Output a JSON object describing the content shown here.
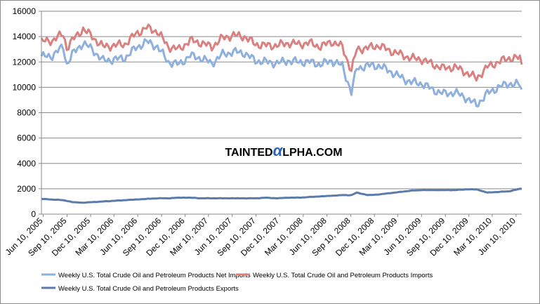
{
  "watermark": "TAINTEDALPHA.COM",
  "watermark_parts": {
    "pre": "TAINTED",
    "alpha": "α",
    "post": "LPHA.COM"
  },
  "chart_data": {
    "type": "line",
    "title": "",
    "xlabel": "",
    "ylabel": "",
    "ylim": [
      0,
      16000
    ],
    "yticks": [
      0,
      2000,
      4000,
      6000,
      8000,
      10000,
      12000,
      14000,
      16000
    ],
    "ytick_labels": [
      "0",
      "2000",
      "4000",
      "6000",
      "8000",
      "10000",
      "12000",
      "14000",
      "16000"
    ],
    "grid": "horizontal",
    "legend_position": "bottom",
    "x_tick_labels": [
      "Jun 10, 2005",
      "Sep 10, 2005",
      "Dec 10, 2005",
      "Mar 10, 2006",
      "Jun 10, 2006",
      "Sep 10, 2006",
      "Dec 10, 2006",
      "Mar 10, 2007",
      "Jun 10, 2007",
      "Sep 10, 2007",
      "Dec 10, 2007",
      "Mar 10, 2008",
      "Jun 10, 2008",
      "Sep 10, 2008",
      "Dec 10, 2008",
      "Mar 10, 2009",
      "Jun 10, 2009",
      "Sep 10, 2009",
      "Dec 10, 2009",
      "Mar 10, 2010",
      "Jun 10, 2010"
    ],
    "x_tick_dates": [
      "2005-06-10",
      "2005-09-10",
      "2005-12-10",
      "2006-03-10",
      "2006-06-10",
      "2006-09-10",
      "2006-12-10",
      "2007-03-10",
      "2007-06-10",
      "2007-09-10",
      "2007-12-10",
      "2008-03-10",
      "2008-06-10",
      "2008-09-10",
      "2008-12-10",
      "2009-03-10",
      "2009-06-10",
      "2009-09-10",
      "2009-12-10",
      "2010-03-10",
      "2010-06-10"
    ],
    "x_range": [
      "2005-06-03",
      "2010-07-02"
    ],
    "frequency": "weekly",
    "series": [
      {
        "name": "Weekly U.S. Total Crude Oil and Petroleum Products Net Imports",
        "color": "#8fb0dc",
        "x_dates": [
          "2005-06-03",
          "2005-07-15",
          "2005-08-26",
          "2005-09-09",
          "2005-09-30",
          "2005-11-11",
          "2005-12-16",
          "2006-01-27",
          "2006-03-10",
          "2006-04-21",
          "2006-06-02",
          "2006-07-14",
          "2006-08-25",
          "2006-10-06",
          "2006-11-17",
          "2006-12-29",
          "2007-02-09",
          "2007-03-23",
          "2007-05-04",
          "2007-06-15",
          "2007-07-27",
          "2007-09-07",
          "2007-10-19",
          "2007-11-30",
          "2008-01-11",
          "2008-02-22",
          "2008-04-04",
          "2008-05-16",
          "2008-06-27",
          "2008-08-08",
          "2008-09-12",
          "2008-10-03",
          "2008-11-14",
          "2008-12-26",
          "2009-02-06",
          "2009-03-20",
          "2009-05-01",
          "2009-06-12",
          "2009-07-24",
          "2009-09-04",
          "2009-10-16",
          "2009-11-27",
          "2010-01-08",
          "2010-02-19",
          "2010-04-02",
          "2010-05-14",
          "2010-06-25",
          "2010-07-02"
        ],
        "values": [
          12400,
          12500,
          13200,
          11800,
          12600,
          13500,
          13000,
          12100,
          12200,
          12300,
          13100,
          13600,
          13200,
          12000,
          11800,
          12500,
          12300,
          11900,
          12600,
          12800,
          12700,
          12100,
          12000,
          11900,
          12100,
          12000,
          12000,
          11800,
          12100,
          11700,
          9600,
          11500,
          11700,
          11700,
          11300,
          10800,
          10400,
          10300,
          9800,
          9500,
          9600,
          9200,
          8600,
          9500,
          10000,
          10300,
          10200,
          9700
        ]
      },
      {
        "name": "Weekly U.S. Total Crude Oil and Petroleum Products Imports",
        "color": "#d98080",
        "x_dates": [
          "2005-06-03",
          "2005-07-15",
          "2005-08-26",
          "2005-09-09",
          "2005-09-30",
          "2005-11-11",
          "2005-12-16",
          "2006-01-27",
          "2006-03-10",
          "2006-04-21",
          "2006-06-02",
          "2006-07-14",
          "2006-08-25",
          "2006-10-06",
          "2006-11-17",
          "2006-12-29",
          "2007-02-09",
          "2007-03-23",
          "2007-05-04",
          "2007-06-15",
          "2007-07-27",
          "2007-09-07",
          "2007-10-19",
          "2007-11-30",
          "2008-01-11",
          "2008-02-22",
          "2008-04-04",
          "2008-05-16",
          "2008-06-27",
          "2008-08-08",
          "2008-09-12",
          "2008-10-03",
          "2008-11-14",
          "2008-12-26",
          "2009-02-06",
          "2009-03-20",
          "2009-05-01",
          "2009-06-12",
          "2009-07-24",
          "2009-09-04",
          "2009-10-16",
          "2009-11-27",
          "2010-01-08",
          "2010-02-19",
          "2010-04-02",
          "2010-05-14",
          "2010-06-25",
          "2010-07-02"
        ],
        "values": [
          13600,
          13700,
          14200,
          13100,
          13700,
          14600,
          14000,
          13200,
          13300,
          13400,
          14200,
          14700,
          14400,
          13200,
          13000,
          13700,
          13500,
          13200,
          13900,
          14100,
          14000,
          13400,
          13300,
          13300,
          13500,
          13400,
          13500,
          13200,
          13600,
          13200,
          11300,
          13000,
          13100,
          13300,
          12900,
          12600,
          12300,
          12200,
          11800,
          11500,
          11600,
          11200,
          10700,
          11600,
          12000,
          12300,
          12300,
          11700
        ]
      },
      {
        "name": "Weekly U.S. Total Crude Oil and Petroleum Products Exports",
        "color": "#5b7bab",
        "x_dates": [
          "2005-06-03",
          "2005-07-15",
          "2005-08-26",
          "2005-09-09",
          "2005-09-30",
          "2005-11-11",
          "2005-12-16",
          "2006-01-27",
          "2006-03-10",
          "2006-04-21",
          "2006-06-02",
          "2006-07-14",
          "2006-08-25",
          "2006-10-06",
          "2006-11-17",
          "2006-12-29",
          "2007-02-09",
          "2007-03-23",
          "2007-05-04",
          "2007-06-15",
          "2007-07-27",
          "2007-09-07",
          "2007-10-19",
          "2007-11-30",
          "2008-01-11",
          "2008-02-22",
          "2008-04-04",
          "2008-05-16",
          "2008-06-27",
          "2008-08-08",
          "2008-09-12",
          "2008-10-03",
          "2008-11-14",
          "2008-12-26",
          "2009-02-06",
          "2009-03-20",
          "2009-05-01",
          "2009-06-12",
          "2009-07-24",
          "2009-09-04",
          "2009-10-16",
          "2009-11-27",
          "2010-01-08",
          "2010-02-19",
          "2010-04-02",
          "2010-05-14",
          "2010-06-25",
          "2010-07-02"
        ],
        "values": [
          1200,
          1150,
          1100,
          1050,
          950,
          900,
          950,
          1000,
          1050,
          1100,
          1150,
          1200,
          1250,
          1250,
          1300,
          1300,
          1250,
          1250,
          1250,
          1250,
          1250,
          1250,
          1300,
          1250,
          1300,
          1300,
          1350,
          1400,
          1450,
          1500,
          1500,
          1700,
          1500,
          1550,
          1650,
          1750,
          1850,
          1900,
          1900,
          1900,
          1900,
          1950,
          1950,
          1700,
          1750,
          1800,
          2000,
          2000
        ]
      }
    ]
  }
}
